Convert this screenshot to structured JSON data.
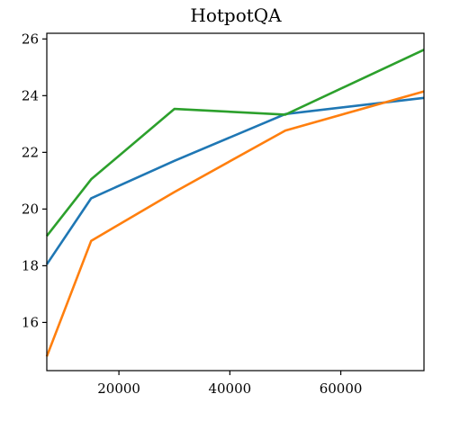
{
  "chart_data": {
    "type": "line",
    "title": "HotpotQA",
    "xlabel": "",
    "ylabel": "",
    "xlim": [
      7000,
      75000
    ],
    "ylim": [
      14.3,
      26.2
    ],
    "xticks": [
      20000,
      40000,
      60000
    ],
    "yticks": [
      16,
      18,
      20,
      22,
      24,
      26
    ],
    "xtick_labels": [
      "20000",
      "40000",
      "60000"
    ],
    "ytick_labels": [
      "16",
      "18",
      "20",
      "22",
      "24",
      "26"
    ],
    "grid": false,
    "legend": "none",
    "series": [
      {
        "color": "#1f77b4",
        "x": [
          7000,
          15000,
          30000,
          50000,
          75000
        ],
        "y": [
          18.05,
          20.38,
          21.7,
          23.35,
          23.92
        ]
      },
      {
        "color": "#ff7f0e",
        "x": [
          7000,
          15000,
          30000,
          50000,
          75000
        ],
        "y": [
          14.8,
          18.88,
          20.6,
          22.77,
          24.15
        ]
      },
      {
        "color": "#2ca02c",
        "x": [
          7000,
          15000,
          30000,
          50000,
          75000
        ],
        "y": [
          19.05,
          21.05,
          23.53,
          23.33,
          25.62
        ]
      }
    ]
  }
}
